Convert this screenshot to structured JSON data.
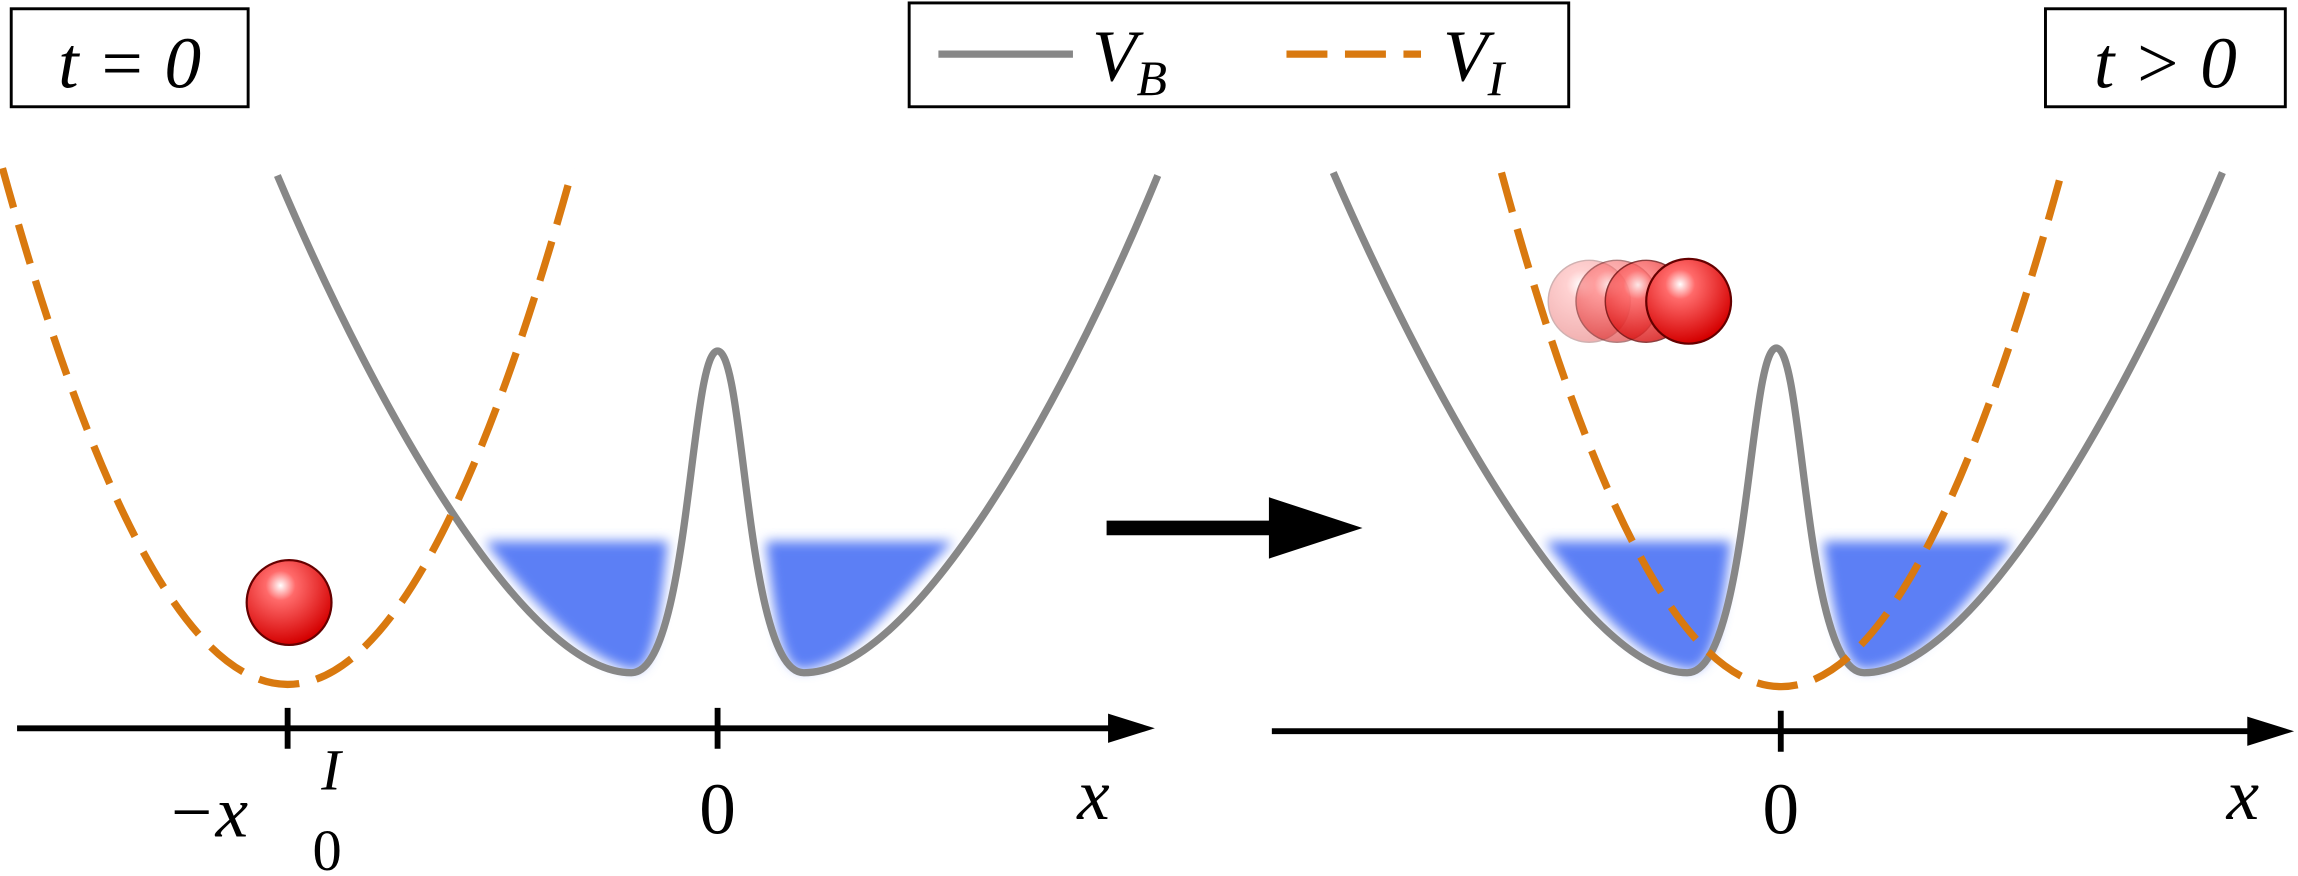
{
  "panels": [
    {
      "label": "t = 0",
      "ticks": [
        {
          "main": "−x",
          "sub": "0",
          "sup": "I"
        },
        {
          "main": "0"
        }
      ],
      "axis_label": "x"
    },
    {
      "label": "t > 0",
      "ticks": [
        {
          "main": "0"
        }
      ],
      "axis_label": "x"
    }
  ],
  "legend": [
    {
      "symbol": "V",
      "subscript": "B"
    },
    {
      "symbol": "V",
      "subscript": "I"
    }
  ]
}
